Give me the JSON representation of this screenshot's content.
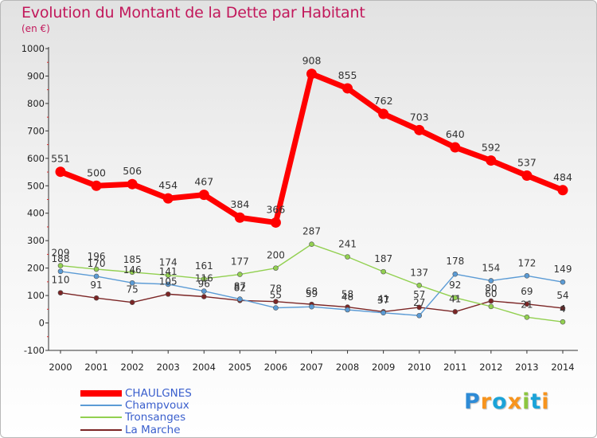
{
  "header": {
    "title": "Evolution du Montant de la Dette par Habitant",
    "subtitle": "(en €)"
  },
  "chart_data": {
    "type": "line",
    "title": "Evolution du Montant de la Dette par Habitant",
    "subtitle": "(en €)",
    "xlabel": "",
    "ylabel": "",
    "ylim": [
      -100,
      1000
    ],
    "yticks": [
      -100,
      0,
      100,
      200,
      300,
      400,
      500,
      600,
      700,
      800,
      900,
      1000
    ],
    "grid": false,
    "legend_position": "bottom-left",
    "categories": [
      "2000",
      "2001",
      "2002",
      "2003",
      "2004",
      "2005",
      "2006",
      "2007",
      "2008",
      "2009",
      "2010",
      "2011",
      "2012",
      "2013",
      "2014"
    ],
    "series": [
      {
        "name": "CHAULGNES",
        "color": "#ff0000",
        "values": [
          551,
          500,
          506,
          454,
          467,
          384,
          366,
          908,
          855,
          762,
          703,
          640,
          592,
          537,
          484
        ]
      },
      {
        "name": "Champvoux",
        "color": "#5b9bd5",
        "values": [
          188,
          170,
          146,
          141,
          116,
          87,
          55,
          59,
          48,
          37,
          27,
          178,
          154,
          172,
          149
        ]
      },
      {
        "name": "Tronsanges",
        "color": "#92d050",
        "values": [
          209,
          196,
          185,
          174,
          161,
          177,
          200,
          287,
          241,
          187,
          137,
          92,
          60,
          21,
          4
        ]
      },
      {
        "name": "La Marche",
        "color": "#7b2525",
        "values": [
          110,
          91,
          75,
          105,
          96,
          82,
          78,
          68,
          58,
          41,
          57,
          41,
          80,
          69,
          54
        ]
      }
    ]
  },
  "logo": {
    "letters": [
      "P",
      "r",
      "o",
      "x",
      "i",
      "t",
      "i"
    ],
    "colors": [
      "#2e8bd6",
      "#f7941d",
      "#1ba3d8",
      "#f7941d",
      "#8cc63f",
      "#1ba3d8",
      "#f7941d"
    ]
  }
}
